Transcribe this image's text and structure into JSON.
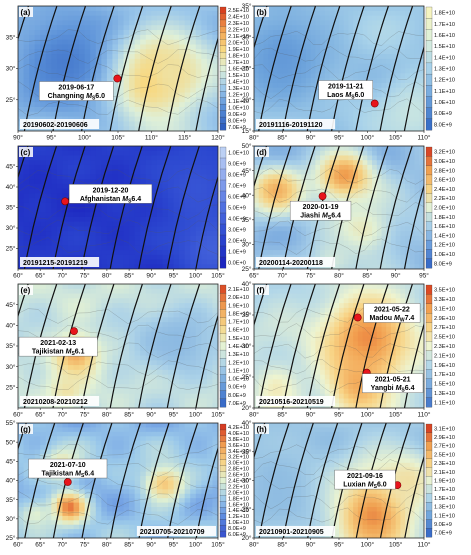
{
  "chart_data": [
    {
      "type": "heatmap",
      "panel": "(a)",
      "date_range": "20190602-20190606",
      "event": {
        "date": "2019-06-17",
        "name": "Changning",
        "mag_sub": "S",
        "mag": "6.0",
        "lon": 104.9,
        "lat": 28.4
      },
      "xlim": [
        90,
        120
      ],
      "ylim": [
        20,
        40
      ],
      "xticks": [
        "90°",
        "95°",
        "100°",
        "105°",
        "110°",
        "115°",
        "120°"
      ],
      "yticks": [
        "25°",
        "30°",
        "35°"
      ],
      "colorbar": [
        "2.5E+10",
        "2.4E+10",
        "2.3E+10",
        "2.2E+10",
        "2.1E+10",
        "2.0E+10",
        "1.9E+10",
        "1.8E+10",
        "1.7E+10",
        "1.6E+10",
        "1.5E+10",
        "1.4E+10",
        "1.3E+10",
        "1.2E+10",
        "1.1E+10",
        "1.0E+10",
        "9.0E+9",
        "8.0E+9",
        "7.0E+9"
      ],
      "palette": [
        "#3060c0",
        "#5a90d8",
        "#9cc8ea",
        "#dff0d8",
        "#f8d880",
        "#f2a050",
        "#d84020"
      ],
      "background_level": 0.35,
      "hotspots": [
        {
          "lon": 109.5,
          "lat": 28.5,
          "level": 0.8,
          "spread": 4.5
        },
        {
          "lon": 113.5,
          "lat": 29,
          "level": 0.62,
          "spread": 3
        },
        {
          "lon": 97,
          "lat": 31,
          "level": 0.1,
          "spread": 6
        }
      ]
    },
    {
      "type": "heatmap",
      "panel": "(b)",
      "date_range": "20191116-20191120",
      "event": {
        "date": "2019-11-21",
        "name": "Laos",
        "mag_sub": "S",
        "mag": "6.0",
        "lon": 101.3,
        "lat": 19.4
      },
      "xlim": [
        80,
        110
      ],
      "ylim": [
        15,
        35
      ],
      "xticks": [
        "80°",
        "85°",
        "90°",
        "95°",
        "100°",
        "105°",
        "110°"
      ],
      "yticks": [
        "15°",
        "20°",
        "25°",
        "30°",
        "35°"
      ],
      "colorbar": [
        "1.8E+10",
        "1.7E+10",
        "1.6E+10",
        "1.5E+10",
        "1.4E+10",
        "1.3E+10",
        "1.2E+10",
        "1.1E+10",
        "1.0E+10",
        "9.0E+9",
        "8.0E+9"
      ],
      "palette": [
        "#3a70c8",
        "#6ea4dc",
        "#a8d2ea",
        "#dcf0dc",
        "#f6f4c0"
      ],
      "background_level": 0.45,
      "hotspots": [
        {
          "lon": 85,
          "lat": 27,
          "level": 0.2,
          "spread": 6
        },
        {
          "lon": 108,
          "lat": 18,
          "level": 0.65,
          "spread": 4
        }
      ]
    },
    {
      "type": "heatmap",
      "panel": "(c)",
      "date_range": "20191215-20191219",
      "event": {
        "date": "2019-12-20",
        "name": "Afghanistan",
        "mag_sub": "S",
        "mag": "6.4",
        "lon": 70.6,
        "lat": 36.5
      },
      "xlim": [
        60,
        105
      ],
      "ylim": [
        20,
        50
      ],
      "xticks": [
        "60°",
        "65°",
        "70°",
        "75°",
        "80°",
        "85°",
        "90°",
        "95°",
        "100°",
        "105°"
      ],
      "yticks": [
        "25°",
        "30°",
        "35°",
        "40°",
        "45°"
      ],
      "colorbar": [
        "1.0E+10",
        "9.0E+9",
        "8.0E+9",
        "7.0E+9",
        "6.0E+9",
        "5.0E+9",
        "4.0E+9",
        "3.0E+9",
        "2.0E+9",
        "1.0E+9",
        "0.0E+0"
      ],
      "palette": [
        "#1c26c0",
        "#2c48d0",
        "#5070e0",
        "#8aa4ec",
        "#bcd0f4"
      ],
      "background_level": 0.12,
      "hotspots": [
        {
          "lon": 100,
          "lat": 40,
          "level": 0.32,
          "spread": 8
        },
        {
          "lon": 104,
          "lat": 25,
          "level": 0.4,
          "spread": 6
        }
      ]
    },
    {
      "type": "heatmap",
      "panel": "(d)",
      "date_range": "20200114-20200118",
      "event": {
        "date": "2020-01-19",
        "name": "Jiashi",
        "mag_sub": "S",
        "mag": "6.4",
        "lon": 77.1,
        "lat": 39.8
      },
      "xlim": [
        65,
        95
      ],
      "ylim": [
        25,
        50
      ],
      "xticks": [
        "65°",
        "70°",
        "75°",
        "80°",
        "85°",
        "90°",
        "95°"
      ],
      "yticks": [
        "25°",
        "30°",
        "35°",
        "40°",
        "45°",
        "50°"
      ],
      "colorbar": [
        "3.2E+10",
        "3.0E+10",
        "2.8E+10",
        "2.6E+10",
        "2.4E+10",
        "2.2E+10",
        "2.0E+10",
        "1.8E+10",
        "1.6E+10",
        "1.4E+10",
        "1.2E+10",
        "1.0E+10",
        "8.0E+9"
      ],
      "palette": [
        "#3a6cc8",
        "#6c9edc",
        "#a8cfe8",
        "#e2f0d4",
        "#f6d486",
        "#f0a050",
        "#d84828"
      ],
      "background_level": 0.3,
      "hotspots": [
        {
          "lon": 69,
          "lat": 41,
          "level": 0.78,
          "spread": 3.2
        },
        {
          "lon": 81,
          "lat": 44,
          "level": 0.85,
          "spread": 3.5
        },
        {
          "lon": 84,
          "lat": 33,
          "level": 0.55,
          "spread": 4
        },
        {
          "lon": 79,
          "lat": 27,
          "level": 0.45,
          "spread": 3
        }
      ]
    },
    {
      "type": "heatmap",
      "panel": "(e)",
      "date_range": "20210208-20210212",
      "event": {
        "date": "2021-02-13",
        "name": "Tajikistan",
        "mag_sub": "S",
        "mag": "6.1",
        "lon": 72.6,
        "lat": 38.6
      },
      "xlim": [
        60,
        105
      ],
      "ylim": [
        20,
        50
      ],
      "xticks": [
        "60°",
        "65°",
        "70°",
        "75°",
        "80°",
        "85°",
        "90°",
        "95°",
        "100°",
        "105°"
      ],
      "yticks": [
        "25°",
        "30°",
        "35°",
        "40°",
        "45°"
      ],
      "colorbar": [
        "2.1E+10",
        "2.0E+10",
        "1.9E+10",
        "1.8E+10",
        "1.7E+10",
        "1.6E+10",
        "1.5E+10",
        "1.4E+10",
        "1.3E+10",
        "1.2E+10",
        "1.1E+10",
        "1.0E+10",
        "9.0E+9",
        "8.0E+9",
        "7.0E+9"
      ],
      "palette": [
        "#3a6cc8",
        "#6ea2dc",
        "#acd2e8",
        "#e4f2d4",
        "#f6d88a",
        "#f0a456",
        "#dc5028"
      ],
      "background_level": 0.4,
      "hotspots": [
        {
          "lon": 73,
          "lat": 33,
          "level": 0.82,
          "spread": 3.6
        },
        {
          "lon": 71,
          "lat": 24,
          "level": 0.6,
          "spread": 3
        },
        {
          "lon": 96,
          "lat": 36,
          "level": 0.25,
          "spread": 7
        }
      ]
    },
    {
      "type": "heatmap",
      "panel": "(f)",
      "date_range": "20210516-20210519",
      "events": [
        {
          "date": "2021-05-22",
          "name": "Madou",
          "mag_sub": "W",
          "mag": "7.4",
          "lon": 98.3,
          "lat": 34.6
        },
        {
          "date": "2021-05-21",
          "name": "Yangbi",
          "mag_sub": "S",
          "mag": "6.4",
          "lon": 99.9,
          "lat": 25.7
        }
      ],
      "xlim": [
        80,
        110
      ],
      "ylim": [
        20,
        40
      ],
      "xticks": [
        "80°",
        "85°",
        "90°",
        "95°",
        "100°",
        "105°",
        "110°"
      ],
      "yticks": [
        "20°",
        "25°",
        "30°",
        "35°",
        "40°"
      ],
      "colorbar": [
        "3.5E+10",
        "3.3E+10",
        "3.1E+10",
        "2.9E+10",
        "2.7E+10",
        "2.5E+10",
        "2.3E+10",
        "2.1E+10",
        "1.9E+10",
        "1.7E+10",
        "1.5E+10",
        "1.3E+10",
        "1.1E+10"
      ],
      "palette": [
        "#4a7ccc",
        "#7cacde",
        "#b4d8e8",
        "#eef4d0",
        "#f8d486",
        "#f2a050",
        "#dc4a24"
      ],
      "background_level": 0.35,
      "hotspots": [
        {
          "lon": 100,
          "lat": 31,
          "level": 0.88,
          "spread": 5.5
        },
        {
          "lon": 98.5,
          "lat": 24,
          "level": 0.8,
          "spread": 3.5
        },
        {
          "lon": 84,
          "lat": 23,
          "level": 0.55,
          "spread": 3
        }
      ]
    },
    {
      "type": "heatmap",
      "panel": "(g)",
      "date_range": "20210705-20210709",
      "event": {
        "date": "2021-07-10",
        "name": "Tajikistan",
        "mag_sub": "S",
        "mag": "6.4",
        "lon": 71.2,
        "lat": 39.6
      },
      "xlim": [
        60,
        105
      ],
      "ylim": [
        25,
        55
      ],
      "xticks": [
        "60°",
        "65°",
        "70°",
        "75°",
        "80°",
        "85°",
        "90°",
        "95°",
        "100°",
        "105°"
      ],
      "yticks": [
        "25°",
        "30°",
        "35°",
        "40°",
        "45°",
        "50°",
        "55°"
      ],
      "colorbar": [
        "4.2E+10",
        "4.0E+10",
        "3.8E+10",
        "3.6E+10",
        "3.4E+10",
        "3.2E+10",
        "3.0E+10",
        "2.8E+10",
        "2.6E+10",
        "2.4E+10",
        "2.2E+10",
        "2.0E+10",
        "1.8E+10",
        "1.6E+10",
        "1.4E+10",
        "1.2E+10",
        "1.0E+10",
        "8.0E+9",
        "6.0E+9"
      ],
      "palette": [
        "#3a56d0",
        "#5e8ce0",
        "#9ccaea",
        "#e0f0d2",
        "#f6d488",
        "#f09c50",
        "#d63c22"
      ],
      "background_level": 0.3,
      "hotspots": [
        {
          "lon": 71.5,
          "lat": 33,
          "level": 0.92,
          "spread": 2.8
        },
        {
          "lon": 70,
          "lat": 44,
          "level": 0.6,
          "spread": 3
        },
        {
          "lon": 93,
          "lat": 39,
          "level": 0.7,
          "spread": 3.5
        },
        {
          "lon": 64,
          "lat": 31,
          "level": 0.5,
          "spread": 3
        }
      ]
    },
    {
      "type": "heatmap",
      "panel": "(h)",
      "date_range": "20210901-20210905",
      "event": {
        "date": "2021-09-16",
        "name": "Luxian",
        "mag_sub": "S",
        "mag": "6.0",
        "lon": 105.3,
        "lat": 29.2
      },
      "xlim": [
        80,
        110
      ],
      "ylim": [
        20,
        40
      ],
      "xticks": [
        "80°",
        "85°",
        "90°",
        "95°",
        "100°",
        "105°",
        "110°"
      ],
      "yticks": [
        "20°",
        "25°",
        "30°",
        "35°",
        "40°"
      ],
      "colorbar": [
        "3.1E+10",
        "2.9E+10",
        "2.7E+10",
        "2.5E+10",
        "2.3E+10",
        "2.1E+10",
        "1.9E+10",
        "1.7E+10",
        "1.5E+10",
        "1.3E+10",
        "1.1E+10",
        "9.0E+9",
        "7.0E+9"
      ],
      "palette": [
        "#3a6cc8",
        "#72a6dc",
        "#aed4e8",
        "#e8f2d2",
        "#f6d286",
        "#f0a050",
        "#d84424"
      ],
      "background_level": 0.33,
      "hotspots": [
        {
          "lon": 101,
          "lat": 24,
          "level": 0.88,
          "spread": 5
        },
        {
          "lon": 107,
          "lat": 30,
          "level": 0.6,
          "spread": 3
        },
        {
          "lon": 84,
          "lat": 30,
          "level": 0.25,
          "spread": 6
        }
      ]
    }
  ]
}
